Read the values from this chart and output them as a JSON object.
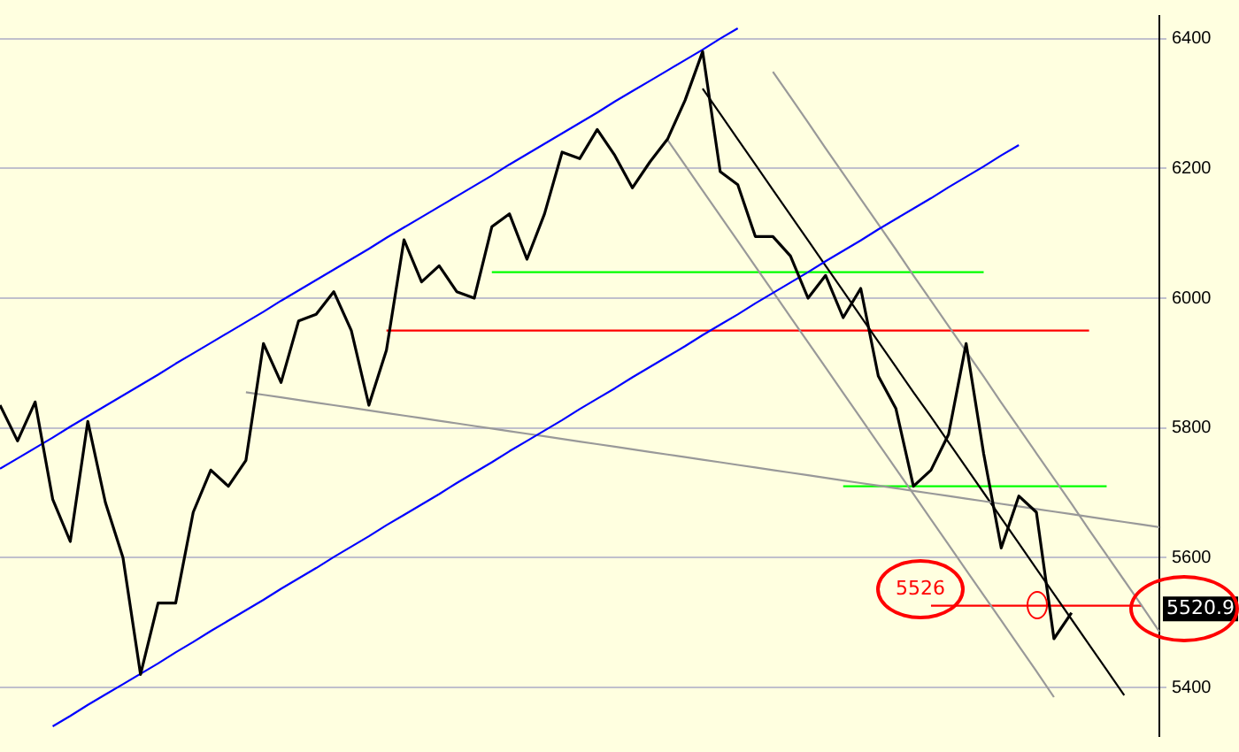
{
  "chart_data": {
    "type": "line",
    "categories": [
      null,
      null,
      null,
      null,
      null,
      null,
      null,
      null,
      null,
      null,
      null,
      null,
      null,
      null,
      null,
      null,
      null,
      null,
      null,
      null,
      null,
      null,
      null,
      null,
      null,
      null,
      null,
      null,
      null,
      null,
      null,
      null,
      null,
      null,
      null,
      null,
      null,
      null,
      null,
      null,
      null,
      null,
      null,
      null,
      null,
      null,
      null,
      null,
      null,
      null,
      null,
      null,
      null,
      null,
      null,
      null,
      null,
      null,
      null,
      null,
      null,
      null,
      null,
      null,
      null,
      null,
      null
    ],
    "series": [
      {
        "color": "#000000",
        "values": [
          5835,
          5780,
          5840,
          5690,
          5625,
          5810,
          5685,
          5600,
          5420,
          5530,
          5530,
          5670,
          5735,
          5710,
          5750,
          5930,
          5870,
          5965,
          5975,
          6010,
          5950,
          5835,
          5920,
          6090,
          6025,
          6050,
          6010,
          6000,
          6110,
          6130,
          6060,
          6130,
          6225,
          6215,
          6260,
          6220,
          6170,
          6210,
          6245,
          6305,
          6380,
          6195,
          6175,
          6095,
          6095,
          6065,
          6000,
          6035,
          5970,
          6015,
          5880,
          5830,
          5710,
          5735,
          5790,
          5930,
          5760,
          5615,
          5695,
          5670,
          5475,
          5515,
          null,
          null,
          null,
          null,
          null
        ]
      },
      {
        "type": "line",
        "color": "#0000ff",
        "values": [
          5737,
          5753,
          5769,
          5785,
          5802,
          5818,
          5834,
          5850,
          5866,
          5882,
          5899,
          5915,
          5931,
          5947,
          5963,
          5979,
          5996,
          6012,
          6028,
          6044,
          6060,
          6076,
          6093,
          6109,
          6125,
          6141,
          6157,
          6173,
          6189,
          6206,
          6222,
          6238,
          6254,
          6270,
          6286,
          6303,
          6319,
          6335,
          6351,
          6367,
          6383,
          6400,
          6416,
          null,
          null,
          null,
          null,
          null,
          null,
          null,
          null,
          null,
          null,
          null,
          null,
          null,
          null,
          null,
          null,
          null,
          null,
          null,
          null,
          null,
          null,
          null,
          null
        ]
      },
      {
        "type": "line",
        "color": "#0000ff",
        "values": [
          null,
          null,
          null,
          5340,
          5356,
          5373,
          5389,
          5405,
          5421,
          5437,
          5454,
          5470,
          5487,
          5503,
          5519,
          5535,
          5552,
          5568,
          5584,
          5601,
          5617,
          5633,
          5650,
          5666,
          5682,
          5698,
          5715,
          5731,
          5747,
          5764,
          5780,
          5796,
          5812,
          5829,
          5845,
          5861,
          5878,
          5894,
          5910,
          5926,
          5943,
          5959,
          5975,
          5992,
          6008,
          6024,
          6040,
          6057,
          6073,
          6089,
          6106,
          6122,
          6138,
          6154,
          6171,
          6187,
          6203,
          6220,
          6236,
          null,
          null,
          null,
          null,
          null,
          null,
          null,
          null
        ]
      },
      {
        "type": "line",
        "color": "#999999",
        "values": [
          null,
          null,
          null,
          null,
          null,
          null,
          null,
          null,
          null,
          null,
          null,
          null,
          null,
          null,
          5855,
          5851,
          5847,
          5843,
          5839,
          5835,
          5831,
          5827,
          5823,
          5819,
          5815,
          5811,
          5807,
          5803,
          5799,
          5795,
          5791,
          5787,
          5783,
          5779,
          5775,
          5771,
          5767,
          5763,
          5759,
          5755,
          5751,
          5747,
          5743,
          5739,
          5735,
          5731,
          5727,
          5723,
          5719,
          5715,
          5711,
          5707,
          5703,
          5699,
          5695,
          5691,
          5687,
          5683,
          5679,
          5675,
          5671,
          5667,
          5663,
          5659,
          5655,
          5651,
          5647
        ]
      },
      {
        "type": "line",
        "color": "#000000",
        "values": [
          null,
          null,
          null,
          null,
          null,
          null,
          null,
          null,
          null,
          null,
          null,
          null,
          null,
          null,
          null,
          null,
          null,
          null,
          null,
          null,
          null,
          null,
          null,
          null,
          null,
          null,
          null,
          null,
          null,
          null,
          null,
          null,
          null,
          null,
          null,
          null,
          null,
          null,
          null,
          null,
          6323,
          6284,
          6245,
          6206,
          6167,
          6128,
          6089,
          6050,
          6011,
          5972,
          5933,
          5894,
          5855,
          5817,
          5778,
          5739,
          5700,
          5661,
          5622,
          5583,
          5544,
          5505,
          5466,
          5427,
          5388,
          null,
          null
        ]
      },
      {
        "type": "line",
        "color": "#999999",
        "values": [
          null,
          null,
          null,
          null,
          null,
          null,
          null,
          null,
          null,
          null,
          null,
          null,
          null,
          null,
          null,
          null,
          null,
          null,
          null,
          null,
          null,
          null,
          null,
          null,
          null,
          null,
          null,
          null,
          null,
          null,
          null,
          null,
          null,
          null,
          null,
          null,
          null,
          null,
          6244,
          6205,
          6166,
          6127,
          6088,
          6049,
          6010,
          5971,
          5932,
          5893,
          5854,
          5815,
          5776,
          5737,
          5698,
          5659,
          5620,
          5581,
          5542,
          5503,
          5464,
          5425,
          5385,
          null,
          null,
          null,
          null,
          null,
          null
        ]
      },
      {
        "type": "line",
        "color": "#999999",
        "values": [
          null,
          null,
          null,
          null,
          null,
          null,
          null,
          null,
          null,
          null,
          null,
          null,
          null,
          null,
          null,
          null,
          null,
          null,
          null,
          null,
          null,
          null,
          null,
          null,
          null,
          null,
          null,
          null,
          null,
          null,
          null,
          null,
          null,
          null,
          null,
          null,
          null,
          null,
          null,
          null,
          null,
          null,
          null,
          null,
          6349,
          6310,
          6271,
          6231,
          6192,
          6153,
          6114,
          6075,
          6035,
          5996,
          5957,
          5918,
          5879,
          5839,
          5800,
          5761,
          5722,
          5683,
          5643,
          5604,
          5565,
          5526,
          5486
        ]
      },
      {
        "type": "line",
        "color": "#00ff00",
        "values": [
          null,
          null,
          null,
          null,
          null,
          null,
          null,
          null,
          null,
          null,
          null,
          null,
          null,
          null,
          null,
          null,
          null,
          null,
          null,
          null,
          null,
          null,
          null,
          null,
          null,
          null,
          null,
          null,
          6040,
          6040,
          6040,
          6040,
          6040,
          6040,
          6040,
          6040,
          6040,
          6040,
          6040,
          6040,
          6040,
          6040,
          6040,
          6040,
          6040,
          6040,
          6040,
          6040,
          6040,
          6040,
          6040,
          6040,
          6040,
          6040,
          6040,
          6040,
          6040,
          null,
          null,
          null,
          null,
          null,
          null,
          null,
          null,
          null,
          null
        ]
      },
      {
        "type": "line",
        "color": "#ff0000",
        "values": [
          null,
          null,
          null,
          null,
          null,
          null,
          null,
          null,
          null,
          null,
          null,
          null,
          null,
          null,
          null,
          null,
          null,
          null,
          null,
          null,
          null,
          null,
          5950,
          5950,
          5950,
          5950,
          5950,
          5950,
          5950,
          5950,
          5950,
          5950,
          5950,
          5950,
          5950,
          5950,
          5950,
          5950,
          5950,
          5950,
          5950,
          5950,
          5950,
          5950,
          5950,
          5950,
          5950,
          5950,
          5950,
          5950,
          5950,
          5950,
          5950,
          5950,
          5950,
          5950,
          5950,
          5950,
          5950,
          5950,
          5950,
          5950,
          5950,
          null,
          null,
          null,
          null
        ]
      },
      {
        "type": "line",
        "color": "#00ff00",
        "values": [
          null,
          null,
          null,
          null,
          null,
          null,
          null,
          null,
          null,
          null,
          null,
          null,
          null,
          null,
          null,
          null,
          null,
          null,
          null,
          null,
          null,
          null,
          null,
          null,
          null,
          null,
          null,
          null,
          null,
          null,
          null,
          null,
          null,
          null,
          null,
          null,
          null,
          null,
          null,
          null,
          null,
          null,
          null,
          null,
          null,
          null,
          null,
          null,
          5710,
          5710,
          5710,
          5710,
          5710,
          5710,
          5710,
          5710,
          5710,
          5710,
          5710,
          5710,
          5710,
          5710,
          5710,
          5710,
          null,
          null,
          null
        ]
      },
      {
        "type": "line",
        "color": "#ff0000",
        "values": [
          null,
          null,
          null,
          null,
          null,
          null,
          null,
          null,
          null,
          null,
          null,
          null,
          null,
          null,
          null,
          null,
          null,
          null,
          null,
          null,
          null,
          null,
          null,
          null,
          null,
          null,
          null,
          null,
          null,
          null,
          null,
          null,
          null,
          null,
          null,
          null,
          null,
          null,
          null,
          null,
          null,
          null,
          null,
          null,
          null,
          null,
          null,
          null,
          null,
          null,
          null,
          null,
          null,
          5526,
          5526,
          5526,
          5526,
          5526,
          5526,
          5526,
          5526,
          5526,
          5526,
          5526,
          5526,
          5526,
          null
        ]
      }
    ],
    "ylim": [
      5325,
      6435
    ],
    "yticks": [
      5400,
      5600,
      5800,
      6000,
      6200,
      6400
    ],
    "tick_labels": "y",
    "grid": "y",
    "legend": false,
    "marker": "none",
    "annotations": [
      "5526",
      {
        "text": "5520.9",
        "y": 5520.9
      }
    ]
  }
}
